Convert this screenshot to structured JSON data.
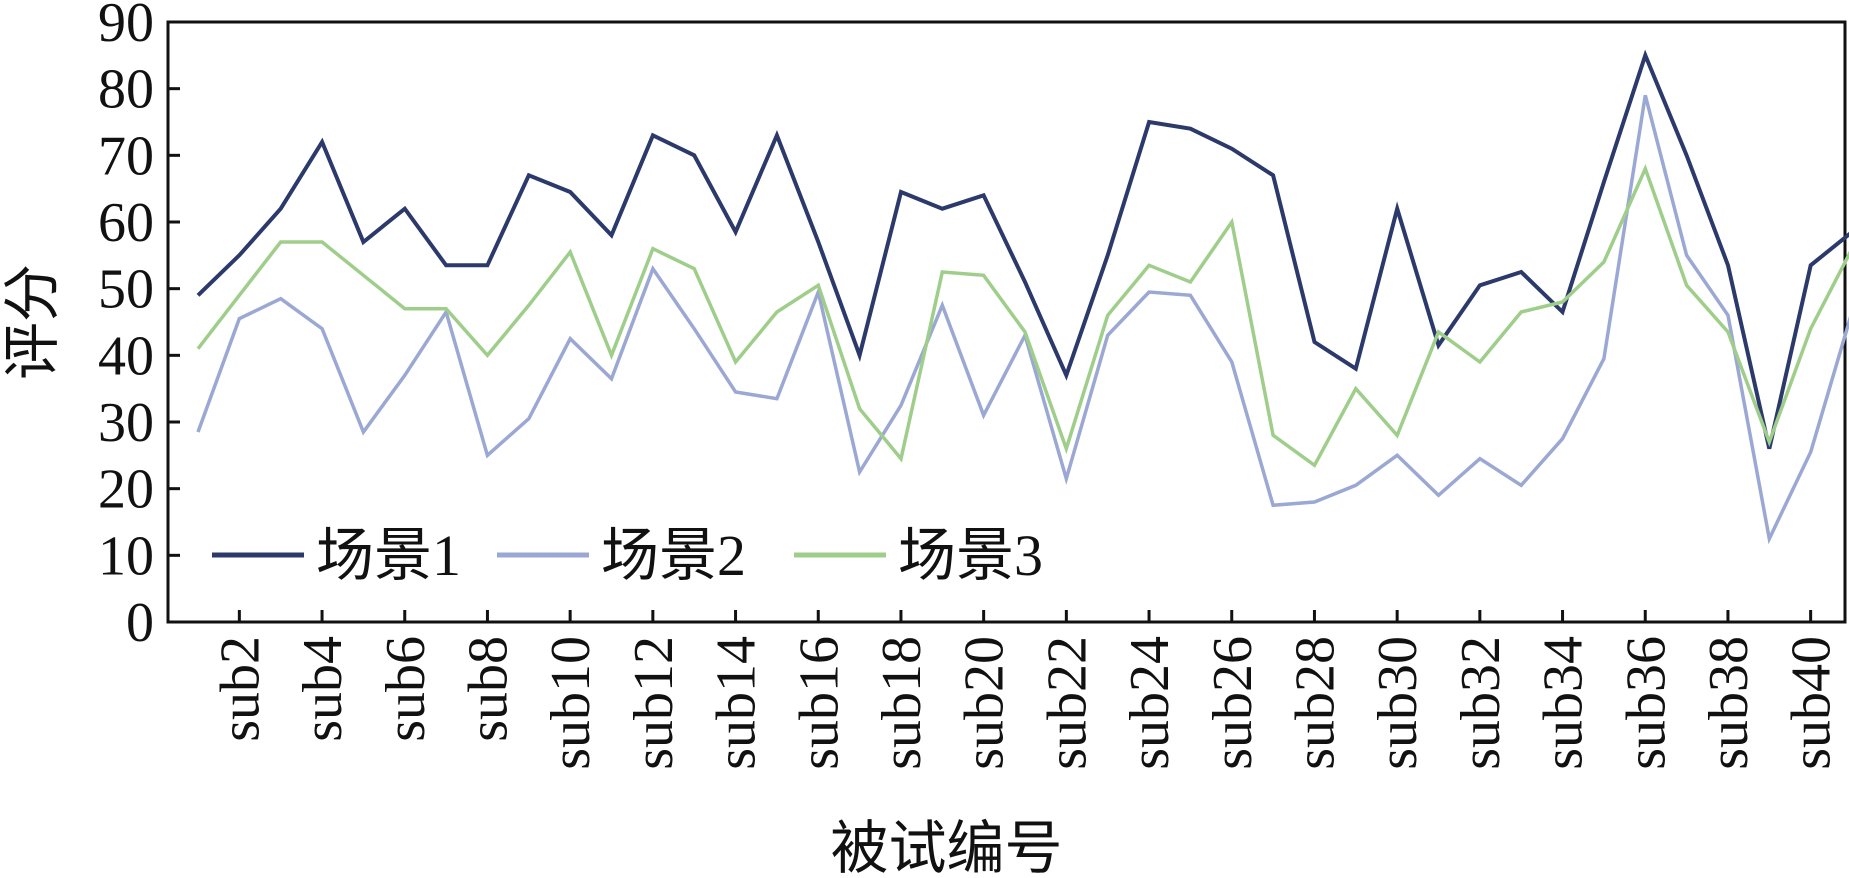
{
  "chart_data": {
    "type": "line",
    "title": "",
    "xlabel": "被试编号",
    "ylabel": "评分",
    "ylim": [
      0,
      90
    ],
    "yticks": [
      "0",
      "10",
      "20",
      "30",
      "40",
      "50",
      "60",
      "70",
      "80",
      "90"
    ],
    "xtick_labels": [
      "sub2",
      "sub4",
      "sub6",
      "sub8",
      "sub10",
      "sub12",
      "sub14",
      "sub16",
      "sub18",
      "sub20",
      "sub22",
      "sub24",
      "sub26",
      "sub28",
      "sub30",
      "sub32",
      "sub34",
      "sub36",
      "sub38",
      "sub40"
    ],
    "categories": [
      "sub1",
      "sub2",
      "sub3",
      "sub4",
      "sub5",
      "sub6",
      "sub7",
      "sub8",
      "sub9",
      "sub10",
      "sub11",
      "sub12",
      "sub13",
      "sub14",
      "sub15",
      "sub16",
      "sub17",
      "sub18",
      "sub19",
      "sub20",
      "sub21",
      "sub22",
      "sub23",
      "sub24",
      "sub25",
      "sub26",
      "sub27",
      "sub28",
      "sub29",
      "sub30",
      "sub31",
      "sub32",
      "sub33",
      "sub34",
      "sub35",
      "sub36",
      "sub37",
      "sub38",
      "sub39",
      "sub40",
      "sub41"
    ],
    "grid": false,
    "legend_position": "bottom-left",
    "series": [
      {
        "name": "场景1",
        "color": "#2c3a6b",
        "values": [
          49,
          55,
          62,
          72,
          57,
          62,
          53.5,
          53.5,
          67,
          64.5,
          58,
          73,
          70,
          58.5,
          73,
          57,
          40,
          64.5,
          62,
          64,
          51,
          37,
          55,
          75,
          74,
          71,
          67,
          42,
          38,
          62,
          41.5,
          50.5,
          52.5,
          46.5,
          66,
          85,
          70,
          53.5,
          26,
          53.5,
          58.5
        ]
      },
      {
        "name": "场景2",
        "color": "#9aa8d3",
        "values": [
          28.5,
          45.5,
          48.5,
          44,
          28.5,
          37,
          46.5,
          25,
          30.5,
          42.5,
          36.5,
          53,
          44,
          34.5,
          33.5,
          49.5,
          22.5,
          32.5,
          47.5,
          31,
          43,
          21.5,
          43,
          49.5,
          49,
          39,
          17.5,
          18,
          20.5,
          25,
          19,
          24.5,
          20.5,
          27.5,
          39.5,
          79,
          55,
          46,
          12.5,
          25.5,
          46.5
        ]
      },
      {
        "name": "场景3",
        "color": "#9fce8b",
        "values": [
          41,
          49,
          57,
          57,
          52,
          47,
          47,
          40,
          47.5,
          55.5,
          40,
          56,
          53,
          39,
          46.5,
          50.5,
          32,
          24.5,
          52.5,
          52,
          43.5,
          26,
          46,
          53.5,
          51,
          60,
          28,
          23.5,
          35,
          28,
          43.5,
          39,
          46.5,
          48,
          54,
          68,
          50.5,
          43.5,
          27,
          44,
          56
        ]
      }
    ]
  }
}
